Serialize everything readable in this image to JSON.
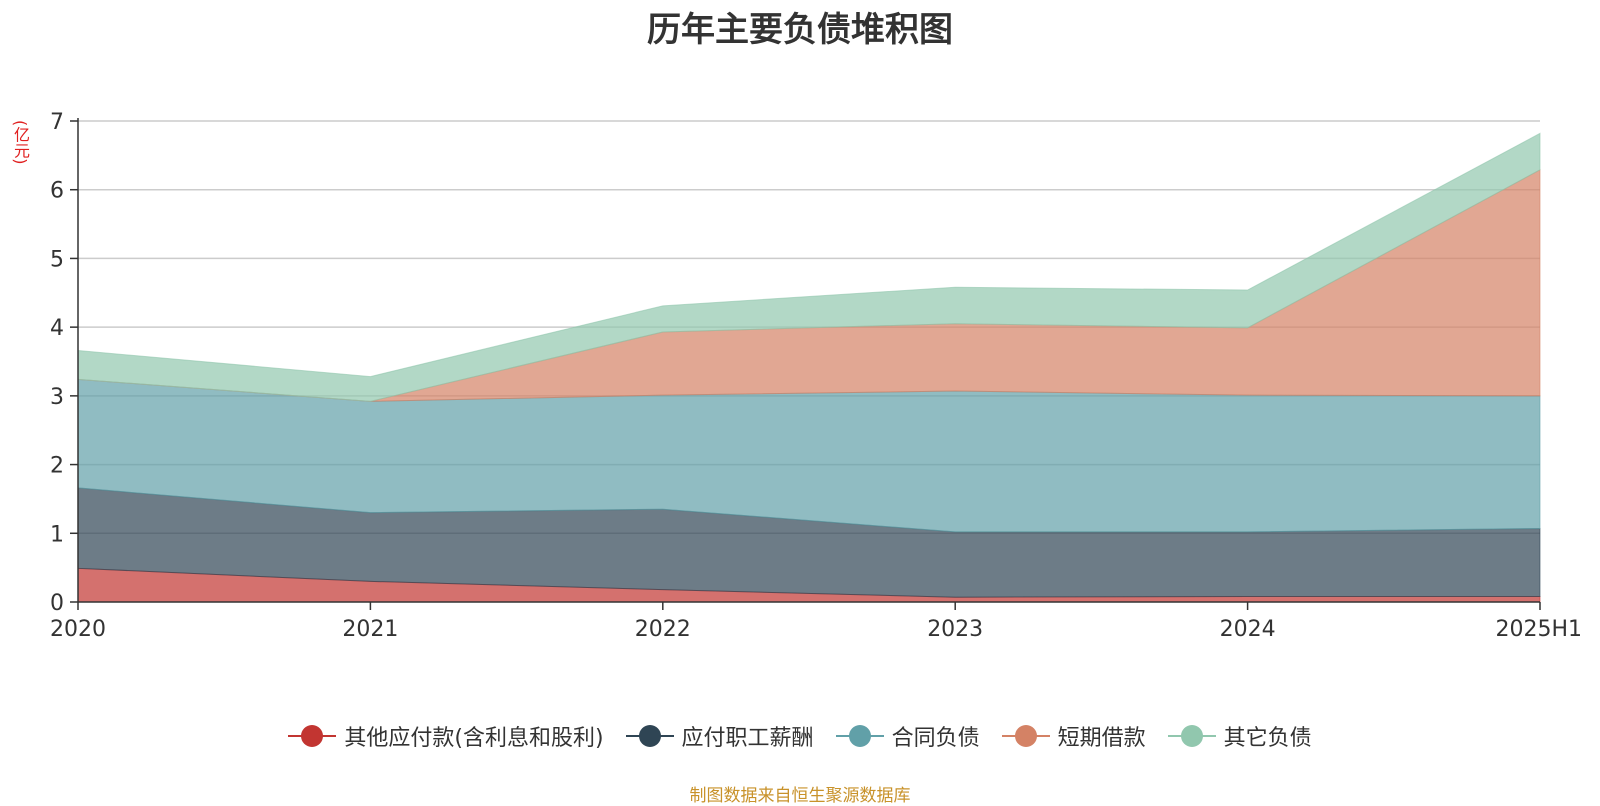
{
  "colors": {
    "series": [
      "#c23531",
      "#2f4554",
      "#61a0a8",
      "#d48265",
      "#91c7ae"
    ],
    "grid": "#cccccc",
    "axis": "#333333",
    "unit": "#e02020",
    "source": "#c8922a"
  },
  "legend_position": "bottom-center",
  "chart_data": {
    "type": "area",
    "stacked": true,
    "title": "历年主要负债堆积图",
    "unit_label": "(亿元)",
    "source_note": "制图数据来自恒生聚源数据库",
    "x": [
      "2020",
      "2021",
      "2022",
      "2023",
      "2024",
      "2025H1"
    ],
    "ylim": [
      0,
      7
    ],
    "yticks": [
      "0",
      "1",
      "2",
      "3",
      "4",
      "5",
      "6",
      "7"
    ],
    "grid": true,
    "series": [
      {
        "name": "其他应付款(含利息和股利)",
        "values": [
          0.49,
          0.3,
          0.18,
          0.07,
          0.08,
          0.08
        ]
      },
      {
        "name": "应付职工薪酬",
        "values": [
          1.17,
          1.0,
          1.17,
          0.95,
          0.94,
          0.99
        ]
      },
      {
        "name": "合同负债",
        "values": [
          1.58,
          1.62,
          1.66,
          2.05,
          1.99,
          1.93
        ]
      },
      {
        "name": "短期借款",
        "values": [
          0.0,
          0.0,
          0.92,
          0.98,
          0.98,
          3.29
        ]
      },
      {
        "name": "其它负债",
        "values": [
          0.42,
          0.36,
          0.38,
          0.53,
          0.55,
          0.53
        ]
      }
    ]
  }
}
